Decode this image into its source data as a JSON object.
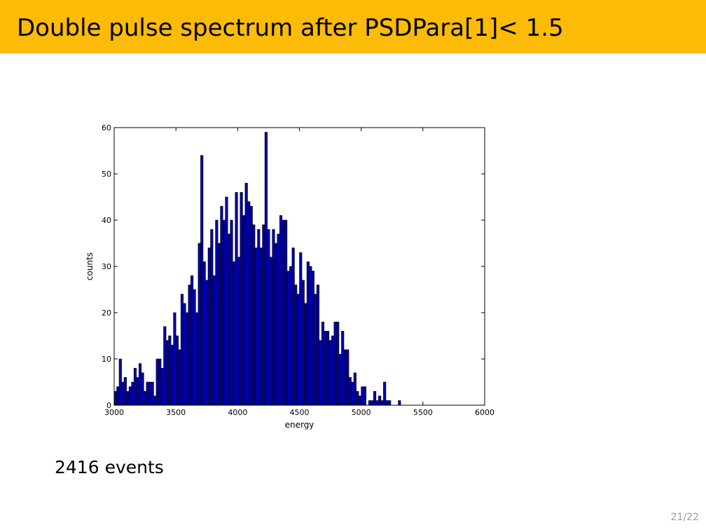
{
  "slide": {
    "title": "Double pulse spectrum after PSDPara[1]< 1.5",
    "events_text": "2416 events",
    "page_number": "21/22",
    "colors": {
      "title_bar": "#fcbb06",
      "bars": "#0000a8"
    }
  },
  "chart_data": {
    "type": "bar",
    "xlabel": "energy",
    "ylabel": "counts",
    "xlim": [
      3000,
      6000
    ],
    "ylim": [
      0,
      60
    ],
    "xticks": [
      3000,
      3500,
      4000,
      4500,
      5000,
      5500,
      6000
    ],
    "yticks": [
      0,
      10,
      20,
      30,
      40,
      50,
      60
    ],
    "bin_start": 3000,
    "bin_width": 20,
    "grid": false,
    "values": [
      3,
      4,
      10,
      5,
      6,
      3,
      4,
      5,
      8,
      6,
      9,
      7,
      3,
      5,
      5,
      5,
      2,
      10,
      10,
      8,
      17,
      14,
      15,
      13,
      20,
      15,
      12,
      24,
      22,
      20,
      26,
      28,
      25,
      20,
      35,
      54,
      31,
      27,
      34,
      38,
      28,
      40,
      35,
      43,
      40,
      45,
      37,
      40,
      31,
      46,
      32,
      46,
      41,
      48,
      44,
      43,
      39,
      34,
      38,
      34,
      39,
      59,
      38,
      32,
      38,
      35,
      37,
      41,
      40,
      40,
      29,
      30,
      34,
      26,
      24,
      33,
      27,
      22,
      31,
      30,
      29,
      24,
      26,
      14,
      18,
      16,
      16,
      14,
      15,
      18,
      18,
      11,
      16,
      12,
      12,
      6,
      5,
      7,
      3,
      2,
      4,
      4,
      0,
      1,
      1,
      3,
      1,
      2,
      1,
      5,
      1,
      1,
      0,
      0,
      0,
      1,
      0,
      0,
      0,
      0
    ]
  }
}
